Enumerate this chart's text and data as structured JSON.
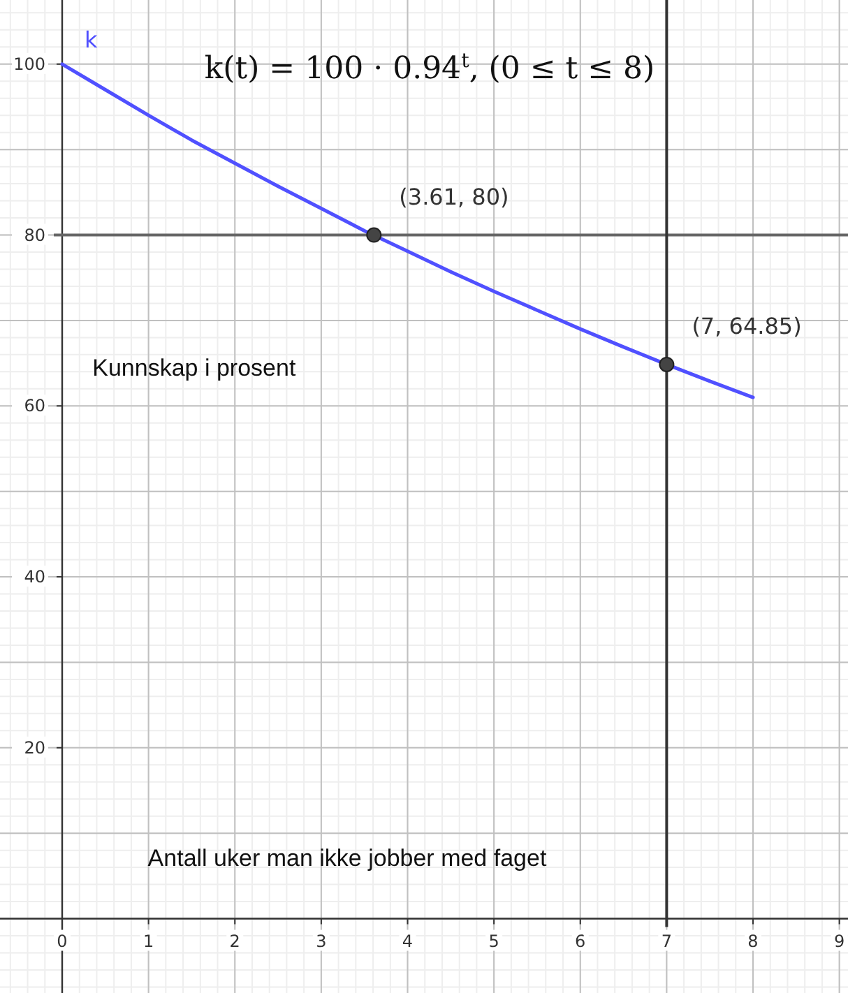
{
  "chart_data": {
    "type": "line",
    "title": "k(t) = 100 · 0.94$^{t}$,   (0 ≤ t ≤ 8)",
    "xlabel": "Antall uker man ikke jobber med faget",
    "ylabel": "Kunnskap i prosent",
    "xlim": [
      -0.72,
      9.1
    ],
    "ylim": [
      -8.7,
      107.5
    ],
    "xticks": [
      0,
      1,
      2,
      3,
      4,
      5,
      6,
      7,
      8,
      9
    ],
    "yticks": [
      20,
      40,
      60,
      80,
      100
    ],
    "grid": true,
    "series": [
      {
        "name": "k",
        "color": "#5050ff",
        "x": [
          0,
          0.5,
          1,
          1.5,
          2,
          2.5,
          3,
          3.5,
          4,
          4.5,
          5,
          5.5,
          6,
          6.5,
          7,
          7.5,
          8
        ],
        "values": [
          100,
          97,
          94,
          91.1,
          88.4,
          85.7,
          83.1,
          80.5,
          78.1,
          75.7,
          73.4,
          71.2,
          69,
          66.9,
          64.85,
          62.9,
          61
        ]
      },
      {
        "type": "scatter",
        "color": "#444444",
        "marker": "circle",
        "x": [
          3.61,
          7
        ],
        "values": [
          80,
          64.85
        ],
        "value_labels": [
          "(3.61, 80)",
          "(7, 64.85)"
        ]
      }
    ],
    "ref_lines": [
      {
        "axis": "y",
        "value": 80,
        "color": "#666666"
      },
      {
        "axis": "x",
        "value": 7,
        "color": "#333333"
      }
    ]
  }
}
